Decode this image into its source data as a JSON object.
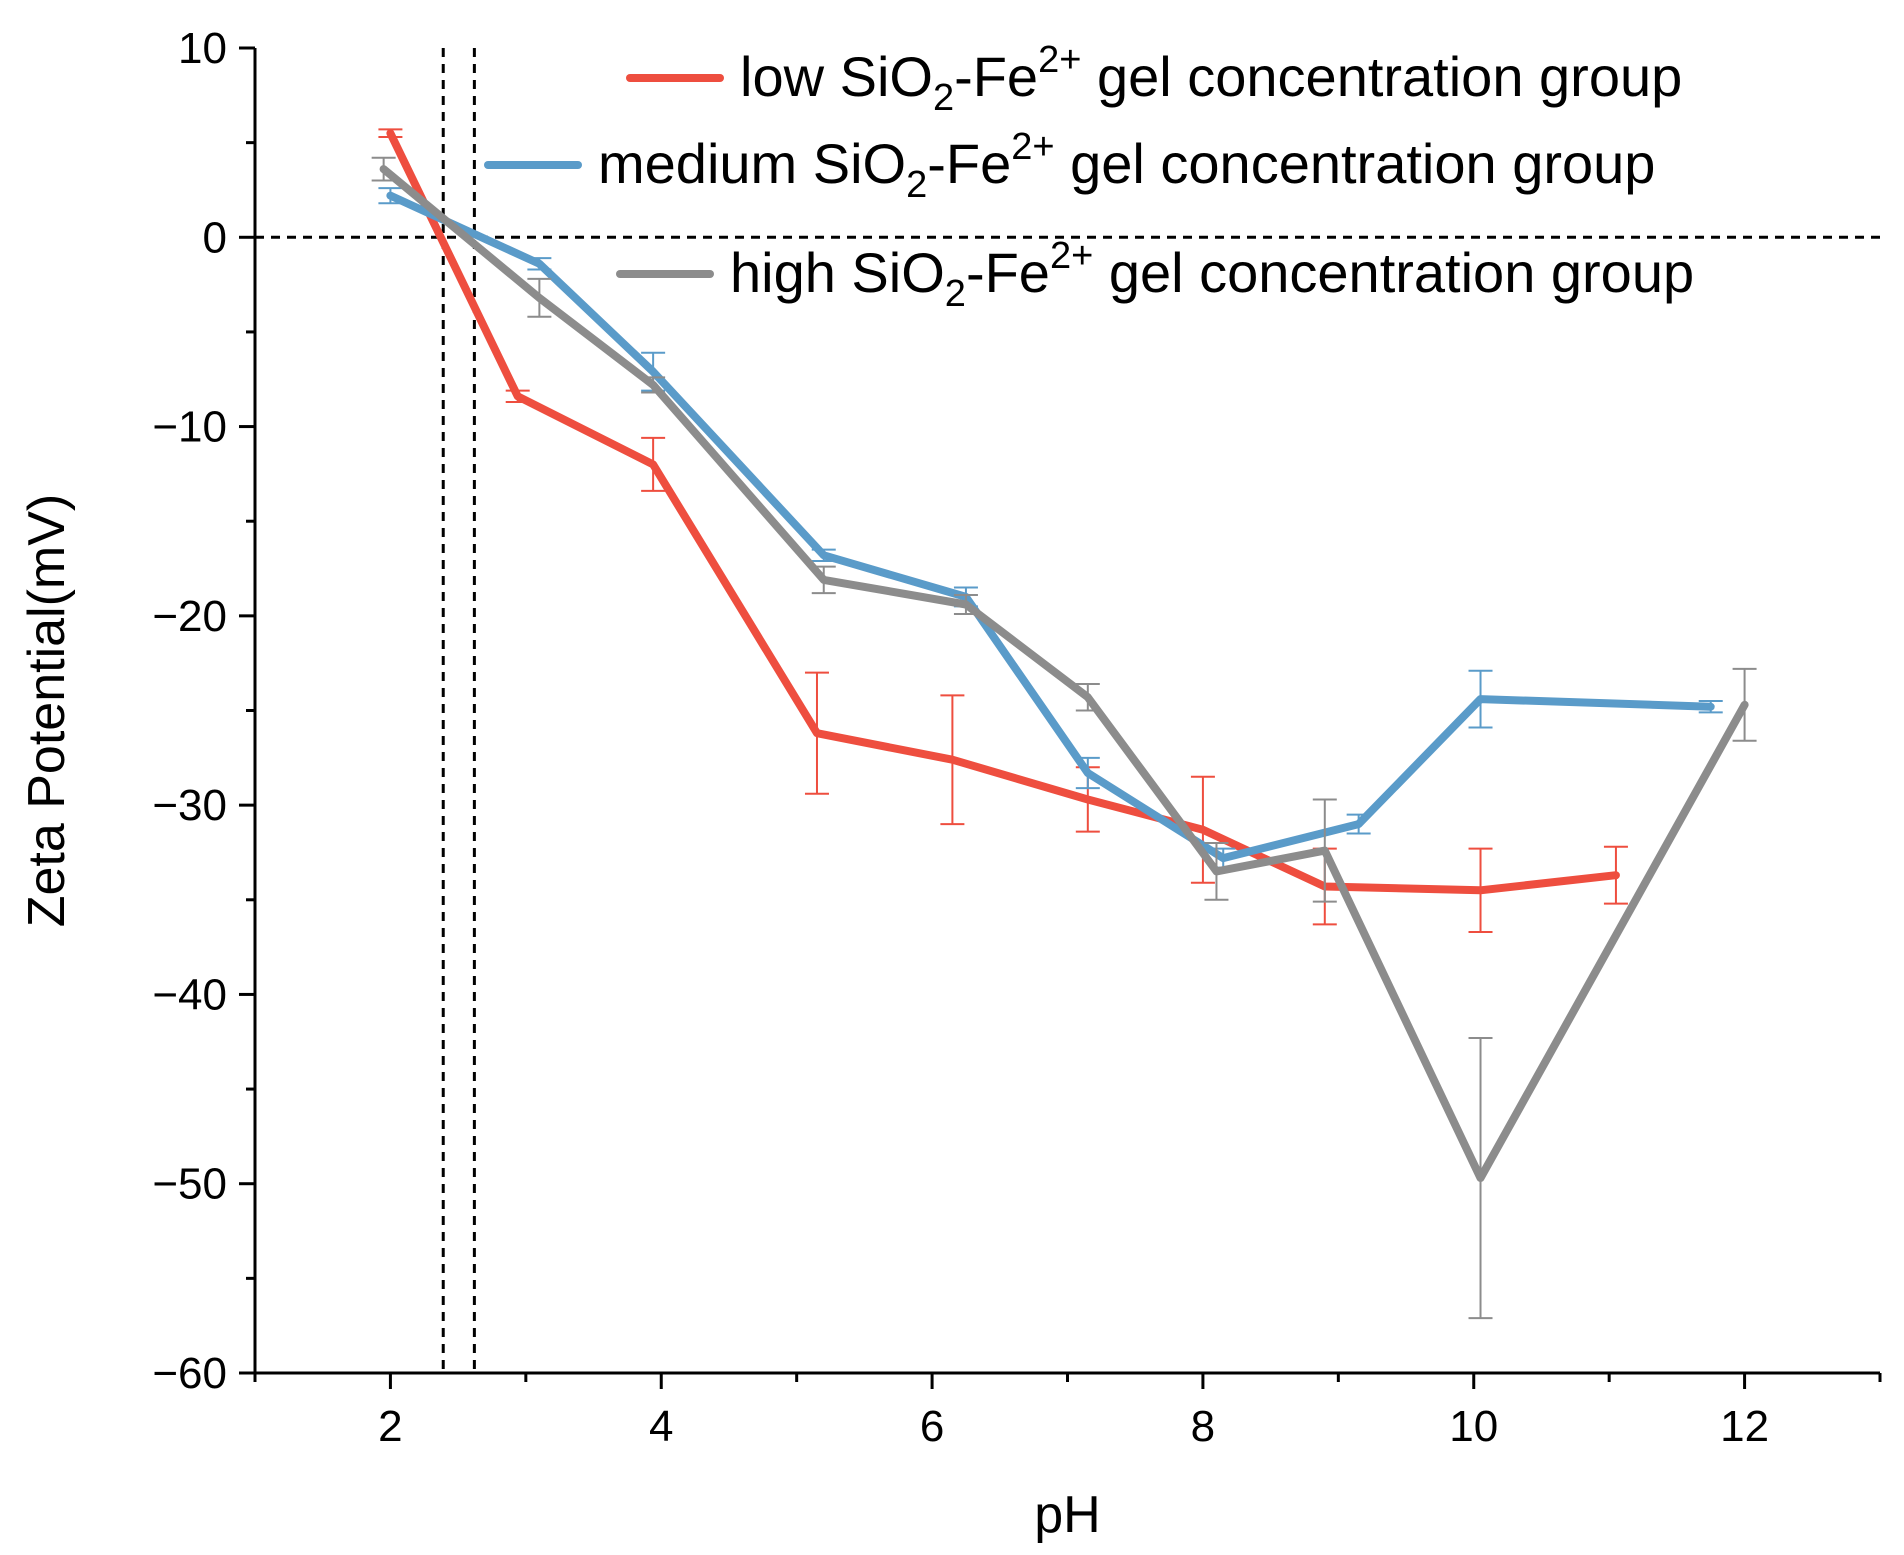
{
  "chart_data": {
    "type": "line",
    "title": "",
    "xlabel": "pH",
    "ylabel": "Zeta Potential(mV)",
    "xlim": [
      1,
      13
    ],
    "ylim": [
      -60,
      10
    ],
    "x_ticks": [
      2,
      4,
      6,
      8,
      10,
      12
    ],
    "x_tick_labels": [
      "2",
      "4",
      "6",
      "8",
      "10",
      "12"
    ],
    "y_ticks": [
      10,
      0,
      -10,
      -20,
      -30,
      -40,
      -50,
      -60
    ],
    "y_tick_labels": [
      "10",
      "0",
      "−10",
      "−20",
      "−30",
      "−40",
      "−50",
      "−60"
    ],
    "grid": false,
    "legend_position": "top-right",
    "reference_lines": {
      "horizontal_y": 0,
      "vertical_x": [
        2.39,
        2.62
      ]
    },
    "series": [
      {
        "name": "low SiO2-Fe2+ gel concentration group",
        "legend_prefix": "low SiO",
        "legend_sub": "2",
        "legend_mid": "-Fe",
        "legend_sup": "2+",
        "legend_suffix": " gel concentration group",
        "color": "#EE4E3F",
        "x": [
          2.0,
          2.94,
          3.94,
          5.15,
          6.15,
          7.15,
          8.0,
          8.9,
          10.05,
          11.05
        ],
        "y": [
          5.5,
          -8.4,
          -12.0,
          -26.2,
          -27.6,
          -29.7,
          -31.3,
          -34.3,
          -34.5,
          -33.7
        ],
        "error": [
          0.2,
          0.3,
          1.4,
          3.2,
          3.4,
          1.7,
          2.8,
          2.0,
          2.2,
          1.5
        ]
      },
      {
        "name": "medium SiO2-Fe2+ gel concentration group",
        "legend_prefix": "medium SiO",
        "legend_sub": "2",
        "legend_mid": "-Fe",
        "legend_sup": "2+",
        "legend_suffix": " gel concentration group",
        "color": "#5A9BC9",
        "x": [
          2.0,
          3.1,
          3.94,
          5.2,
          6.25,
          7.15,
          8.15,
          9.15,
          10.05,
          11.75
        ],
        "y": [
          2.2,
          -1.4,
          -7.1,
          -16.8,
          -19.0,
          -28.3,
          -32.8,
          -31.0,
          -24.4,
          -24.8
        ],
        "error": [
          0.4,
          0.3,
          1.0,
          0.3,
          0.5,
          0.8,
          0.5,
          0.5,
          1.5,
          0.3
        ]
      },
      {
        "name": "high SiO2-Fe2+ gel concentration group",
        "legend_prefix": "high SiO",
        "legend_sub": "2",
        "legend_mid": "-Fe",
        "legend_sup": "2+",
        "legend_suffix": " gel concentration group",
        "color": "#8C8C8C",
        "x": [
          1.95,
          3.1,
          3.94,
          5.2,
          6.25,
          7.15,
          8.1,
          8.9,
          10.05,
          12.0
        ],
        "y": [
          3.6,
          -3.2,
          -7.8,
          -18.1,
          -19.4,
          -24.3,
          -33.5,
          -32.4,
          -49.7,
          -24.7
        ],
        "error": [
          0.6,
          1.0,
          0.4,
          0.7,
          0.5,
          0.7,
          1.5,
          2.7,
          7.4,
          1.9
        ]
      }
    ]
  }
}
